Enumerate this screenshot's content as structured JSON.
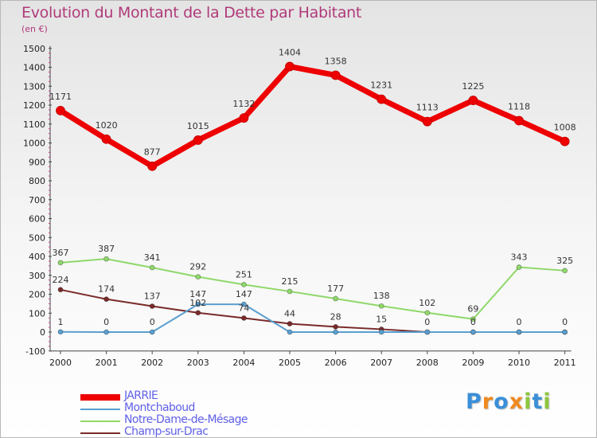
{
  "chart_data": {
    "type": "line",
    "title": "Evolution du Montant de la Dette par Habitant",
    "subtitle": "(en €)",
    "x": [
      "2000",
      "2001",
      "2002",
      "2003",
      "2004",
      "2005",
      "2006",
      "2007",
      "2008",
      "2009",
      "2010",
      "2011"
    ],
    "yticks": [
      "-100",
      "0",
      "100",
      "200",
      "300",
      "400",
      "500",
      "600",
      "700",
      "800",
      "900",
      "1000",
      "1100",
      "1200",
      "1300",
      "1400",
      "1500"
    ],
    "ylim": [
      -100,
      1500
    ],
    "grid": false,
    "legend_position": "bottom-left",
    "series": [
      {
        "name": "JARRIE",
        "color": "#ee0000",
        "values": [
          1171,
          1020,
          877,
          1015,
          1132,
          1404,
          1358,
          1231,
          1113,
          1225,
          1118,
          1008
        ],
        "labels": [
          "1171",
          "1020",
          "877",
          "1015",
          "1132",
          "1404",
          "1358",
          "1231",
          "1113",
          "1225",
          "1118",
          "1008"
        ]
      },
      {
        "name": "Montchaboud",
        "color": "#5a9fd0",
        "values": [
          1,
          0,
          0,
          147,
          147,
          0,
          0,
          0,
          0,
          0,
          0,
          0
        ],
        "labels": [
          "1",
          "0",
          "0",
          "147",
          "147",
          "",
          "",
          "",
          "",
          "",
          "",
          ""
        ]
      },
      {
        "name": "Notre-Dame-de-Mésage",
        "color": "#8fd86a",
        "values": [
          367,
          387,
          341,
          292,
          251,
          215,
          177,
          138,
          102,
          69,
          343,
          325
        ],
        "labels": [
          "367",
          "387",
          "341",
          "292",
          "251",
          "215",
          "177",
          "138",
          "102",
          "69",
          "343",
          "325"
        ]
      },
      {
        "name": "Champ-sur-Drac",
        "color": "#7a2a2a",
        "values": [
          224,
          174,
          137,
          102,
          74,
          44,
          28,
          15,
          0,
          0,
          0,
          0
        ],
        "labels": [
          "224",
          "174",
          "137",
          "102",
          "74",
          "44",
          "28",
          "15",
          "0",
          "0",
          "0",
          "0"
        ]
      }
    ]
  },
  "brand": {
    "letters": [
      "P",
      "r",
      "o",
      "x",
      "i",
      "t",
      "i"
    ],
    "colors": [
      "#3a8fd8",
      "#ef8a1f",
      "#3a8fd8",
      "#ef8a1f",
      "#8cc63e",
      "#3a8fd8",
      "#8cc63e"
    ]
  }
}
